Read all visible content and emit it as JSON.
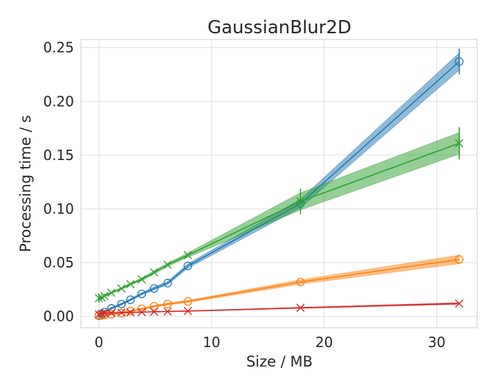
{
  "chart_data": {
    "type": "line",
    "title": "GaussianBlur2D",
    "xlabel": "Size / MB",
    "ylabel": "Processing time / s",
    "xlim": [
      -1.6,
      33.6
    ],
    "ylim": [
      -0.0105,
      0.2575
    ],
    "xticks": [
      0,
      10,
      20,
      30
    ],
    "xtick_labels": [
      "0",
      "10",
      "20",
      "30"
    ],
    "yticks": [
      0.0,
      0.05,
      0.1,
      0.15,
      0.2,
      0.25
    ],
    "ytick_labels": [
      "0.00",
      "0.05",
      "0.10",
      "0.15",
      "0.20",
      "0.25"
    ],
    "grid": true,
    "legend": "none",
    "series": [
      {
        "color": "#1f77b4",
        "marker": "circle",
        "x": [
          0,
          0.25,
          0.5,
          1.1,
          2.0,
          2.8,
          3.8,
          4.9,
          6.1,
          7.9,
          17.9,
          32
        ],
        "y": [
          0.001,
          0.0025,
          0.004,
          0.0075,
          0.0115,
          0.0155,
          0.021,
          0.026,
          0.031,
          0.047,
          0.105,
          0.237
        ],
        "band": [
          0.001,
          0.001,
          0.001,
          0.001,
          0.001,
          0.001,
          0.001,
          0.0015,
          0.0015,
          0.002,
          0.004,
          0.008
        ],
        "errbar_index": [
          11
        ]
      },
      {
        "color": "#ff7f0e",
        "marker": "circle",
        "x": [
          0,
          0.25,
          0.5,
          1.1,
          2.0,
          2.8,
          3.8,
          4.9,
          6.1,
          7.9,
          17.9,
          32
        ],
        "y": [
          0.0005,
          0.001,
          0.0015,
          0.002,
          0.003,
          0.005,
          0.007,
          0.0095,
          0.0115,
          0.014,
          0.032,
          0.053
        ],
        "band": [
          0.0005,
          0.0005,
          0.0005,
          0.0005,
          0.0005,
          0.0005,
          0.0007,
          0.0008,
          0.001,
          0.001,
          0.002,
          0.004
        ],
        "errbar_index": []
      },
      {
        "color": "#2ca02c",
        "marker": "x",
        "x": [
          0,
          0.25,
          0.5,
          1.1,
          2.0,
          2.8,
          3.8,
          4.9,
          6.1,
          7.9,
          17.9,
          32
        ],
        "y": [
          0.017,
          0.0175,
          0.019,
          0.022,
          0.026,
          0.03,
          0.0345,
          0.041,
          0.048,
          0.057,
          0.107,
          0.161
        ],
        "band": [
          0.0005,
          0.0005,
          0.0005,
          0.0007,
          0.0008,
          0.001,
          0.0012,
          0.0015,
          0.0015,
          0.002,
          0.008,
          0.01
        ],
        "errbar_index": [
          0,
          10,
          11
        ]
      },
      {
        "color": "#d62728",
        "marker": "x",
        "x": [
          0,
          0.25,
          0.5,
          1.1,
          2.0,
          2.8,
          3.8,
          4.9,
          6.1,
          7.9,
          17.9,
          32
        ],
        "y": [
          0.002,
          0.0025,
          0.003,
          0.0033,
          0.0036,
          0.0038,
          0.004,
          0.0043,
          0.0046,
          0.005,
          0.008,
          0.012
        ],
        "band": [
          0.0003,
          0.0003,
          0.0003,
          0.0003,
          0.0003,
          0.0003,
          0.0003,
          0.0003,
          0.0003,
          0.0003,
          0.0005,
          0.0008
        ],
        "errbar_index": []
      }
    ]
  }
}
